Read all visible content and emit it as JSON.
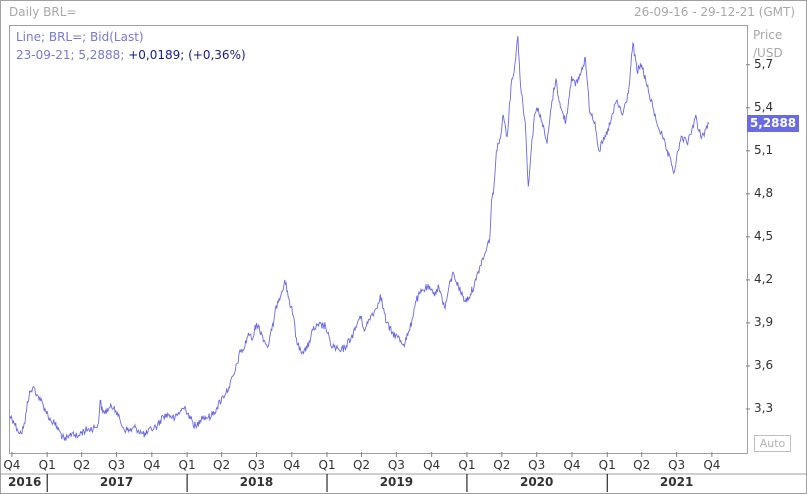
{
  "header": {
    "title": "Daily BRL=",
    "date_range": "26-09-16 - 29-12-21 (GMT)"
  },
  "legend": {
    "series_line": "Line; BRL=; Bid(Last)",
    "last_point": "23-09-21; 5,2888;",
    "change_abs": "+0,0189;",
    "change_pct": "(+0,36%)"
  },
  "y_axis": {
    "title_line1": "Price",
    "title_line2": "/USD",
    "last_value": "5,2888",
    "auto_label": "Auto"
  },
  "colors": {
    "line": "#6a6ae6",
    "badge": "#6a6ae6"
  },
  "chart_data": {
    "type": "line",
    "title": "Daily BRL=",
    "ylabel": "Price /USD",
    "ylim": [
      3.0,
      5.97
    ],
    "xlim": [
      "2016-09-26",
      "2021-12-29"
    ],
    "y_ticks": [
      3.3,
      3.6,
      3.9,
      4.2,
      4.5,
      4.8,
      5.1,
      5.4,
      5.7
    ],
    "y_tick_labels": [
      "3,3",
      "3,6",
      "3,9",
      "4,2",
      "4,5",
      "4,8",
      "5,1",
      "5,4",
      "5,7"
    ],
    "x_quarter_ticks": [
      {
        "date": "2016-10-01",
        "label": "Q4"
      },
      {
        "date": "2017-01-01",
        "label": "Q1"
      },
      {
        "date": "2017-04-01",
        "label": "Q2"
      },
      {
        "date": "2017-07-01",
        "label": "Q3"
      },
      {
        "date": "2017-10-01",
        "label": "Q4"
      },
      {
        "date": "2018-01-01",
        "label": "Q1"
      },
      {
        "date": "2018-04-01",
        "label": "Q2"
      },
      {
        "date": "2018-07-01",
        "label": "Q3"
      },
      {
        "date": "2018-10-01",
        "label": "Q4"
      },
      {
        "date": "2019-01-01",
        "label": "Q1"
      },
      {
        "date": "2019-04-01",
        "label": "Q2"
      },
      {
        "date": "2019-07-01",
        "label": "Q3"
      },
      {
        "date": "2019-10-01",
        "label": "Q4"
      },
      {
        "date": "2020-01-01",
        "label": "Q1"
      },
      {
        "date": "2020-04-01",
        "label": "Q2"
      },
      {
        "date": "2020-07-01",
        "label": "Q3"
      },
      {
        "date": "2020-10-01",
        "label": "Q4"
      },
      {
        "date": "2021-01-01",
        "label": "Q1"
      },
      {
        "date": "2021-04-01",
        "label": "Q2"
      },
      {
        "date": "2021-07-01",
        "label": "Q3"
      },
      {
        "date": "2021-10-01",
        "label": "Q4"
      }
    ],
    "x_year_labels": [
      {
        "date": "2016-09-26",
        "label": "2016"
      },
      {
        "date": "2017-07-01",
        "label": "2017"
      },
      {
        "date": "2018-07-01",
        "label": "2018"
      },
      {
        "date": "2019-07-01",
        "label": "2019"
      },
      {
        "date": "2020-07-01",
        "label": "2020"
      },
      {
        "date": "2021-07-01",
        "label": "2021"
      }
    ],
    "year_separators": [
      "2017-01-01",
      "2018-01-01",
      "2019-01-01",
      "2020-01-01",
      "2021-01-01"
    ],
    "series": [
      {
        "values": [
          [
            "2016-09-26",
            3.25
          ],
          [
            "2016-10-05",
            3.22
          ],
          [
            "2016-10-15",
            3.16
          ],
          [
            "2016-10-25",
            3.13
          ],
          [
            "2016-11-04",
            3.2
          ],
          [
            "2016-11-10",
            3.35
          ],
          [
            "2016-11-18",
            3.42
          ],
          [
            "2016-11-28",
            3.45
          ],
          [
            "2016-12-05",
            3.4
          ],
          [
            "2016-12-15",
            3.36
          ],
          [
            "2016-12-28",
            3.29
          ],
          [
            "2017-01-10",
            3.22
          ],
          [
            "2017-01-20",
            3.2
          ],
          [
            "2017-02-01",
            3.15
          ],
          [
            "2017-02-15",
            3.08
          ],
          [
            "2017-02-25",
            3.1
          ],
          [
            "2017-03-10",
            3.14
          ],
          [
            "2017-03-20",
            3.1
          ],
          [
            "2017-04-01",
            3.14
          ],
          [
            "2017-04-20",
            3.16
          ],
          [
            "2017-05-05",
            3.17
          ],
          [
            "2017-05-15",
            3.2
          ],
          [
            "2017-05-19",
            3.36
          ],
          [
            "2017-05-26",
            3.27
          ],
          [
            "2017-06-10",
            3.3
          ],
          [
            "2017-06-25",
            3.32
          ],
          [
            "2017-07-05",
            3.25
          ],
          [
            "2017-07-20",
            3.16
          ],
          [
            "2017-08-05",
            3.15
          ],
          [
            "2017-08-20",
            3.17
          ],
          [
            "2017-09-05",
            3.13
          ],
          [
            "2017-09-15",
            3.12
          ],
          [
            "2017-09-30",
            3.16
          ],
          [
            "2017-10-15",
            3.18
          ],
          [
            "2017-10-30",
            3.25
          ],
          [
            "2017-11-15",
            3.26
          ],
          [
            "2017-11-30",
            3.23
          ],
          [
            "2017-12-15",
            3.29
          ],
          [
            "2017-12-28",
            3.31
          ],
          [
            "2018-01-10",
            3.23
          ],
          [
            "2018-01-25",
            3.17
          ],
          [
            "2018-02-08",
            3.25
          ],
          [
            "2018-02-20",
            3.24
          ],
          [
            "2018-03-05",
            3.25
          ],
          [
            "2018-03-20",
            3.31
          ],
          [
            "2018-04-05",
            3.39
          ],
          [
            "2018-04-20",
            3.45
          ],
          [
            "2018-05-05",
            3.55
          ],
          [
            "2018-05-20",
            3.7
          ],
          [
            "2018-05-30",
            3.72
          ],
          [
            "2018-06-10",
            3.83
          ],
          [
            "2018-06-20",
            3.78
          ],
          [
            "2018-07-01",
            3.9
          ],
          [
            "2018-07-15",
            3.82
          ],
          [
            "2018-07-30",
            3.73
          ],
          [
            "2018-08-10",
            3.85
          ],
          [
            "2018-08-25",
            4.05
          ],
          [
            "2018-09-05",
            4.12
          ],
          [
            "2018-09-13",
            4.2
          ],
          [
            "2018-09-25",
            4.05
          ],
          [
            "2018-10-05",
            3.95
          ],
          [
            "2018-10-15",
            3.75
          ],
          [
            "2018-10-30",
            3.7
          ],
          [
            "2018-11-10",
            3.72
          ],
          [
            "2018-11-25",
            3.85
          ],
          [
            "2018-12-10",
            3.88
          ],
          [
            "2018-12-28",
            3.88
          ],
          [
            "2019-01-10",
            3.75
          ],
          [
            "2019-01-25",
            3.72
          ],
          [
            "2019-02-05",
            3.7
          ],
          [
            "2019-02-20",
            3.74
          ],
          [
            "2019-03-05",
            3.8
          ],
          [
            "2019-03-15",
            3.85
          ],
          [
            "2019-03-28",
            3.95
          ],
          [
            "2019-04-10",
            3.85
          ],
          [
            "2019-04-25",
            3.95
          ],
          [
            "2019-05-10",
            4.0
          ],
          [
            "2019-05-20",
            4.1
          ],
          [
            "2019-06-05",
            3.9
          ],
          [
            "2019-06-20",
            3.83
          ],
          [
            "2019-07-05",
            3.8
          ],
          [
            "2019-07-20",
            3.75
          ],
          [
            "2019-08-05",
            3.85
          ],
          [
            "2019-08-20",
            4.05
          ],
          [
            "2019-09-05",
            4.12
          ],
          [
            "2019-09-20",
            4.15
          ],
          [
            "2019-10-05",
            4.1
          ],
          [
            "2019-10-20",
            4.15
          ],
          [
            "2019-11-05",
            4.0
          ],
          [
            "2019-11-15",
            4.15
          ],
          [
            "2019-11-27",
            4.25
          ],
          [
            "2019-12-10",
            4.15
          ],
          [
            "2019-12-28",
            4.05
          ],
          [
            "2020-01-10",
            4.1
          ],
          [
            "2020-01-25",
            4.2
          ],
          [
            "2020-02-05",
            4.3
          ],
          [
            "2020-02-20",
            4.4
          ],
          [
            "2020-03-01",
            4.5
          ],
          [
            "2020-03-05",
            4.75
          ],
          [
            "2020-03-10",
            4.8
          ],
          [
            "2020-03-18",
            5.1
          ],
          [
            "2020-03-25",
            5.15
          ],
          [
            "2020-04-05",
            5.35
          ],
          [
            "2020-04-15",
            5.2
          ],
          [
            "2020-04-25",
            5.55
          ],
          [
            "2020-05-05",
            5.7
          ],
          [
            "2020-05-13",
            5.9
          ],
          [
            "2020-05-20",
            5.55
          ],
          [
            "2020-06-01",
            5.3
          ],
          [
            "2020-06-09",
            4.85
          ],
          [
            "2020-06-15",
            5.05
          ],
          [
            "2020-06-25",
            5.35
          ],
          [
            "2020-07-05",
            5.4
          ],
          [
            "2020-07-15",
            5.3
          ],
          [
            "2020-07-28",
            5.15
          ],
          [
            "2020-08-10",
            5.45
          ],
          [
            "2020-08-20",
            5.6
          ],
          [
            "2020-09-01",
            5.4
          ],
          [
            "2020-09-15",
            5.3
          ],
          [
            "2020-09-30",
            5.62
          ],
          [
            "2020-10-10",
            5.55
          ],
          [
            "2020-10-25",
            5.65
          ],
          [
            "2020-11-05",
            5.75
          ],
          [
            "2020-11-15",
            5.4
          ],
          [
            "2020-11-30",
            5.3
          ],
          [
            "2020-12-10",
            5.1
          ],
          [
            "2020-12-28",
            5.2
          ],
          [
            "2021-01-10",
            5.3
          ],
          [
            "2021-01-25",
            5.45
          ],
          [
            "2021-02-10",
            5.35
          ],
          [
            "2021-02-25",
            5.5
          ],
          [
            "2021-03-09",
            5.85
          ],
          [
            "2021-03-20",
            5.65
          ],
          [
            "2021-04-01",
            5.7
          ],
          [
            "2021-04-15",
            5.55
          ],
          [
            "2021-04-30",
            5.4
          ],
          [
            "2021-05-10",
            5.3
          ],
          [
            "2021-05-25",
            5.2
          ],
          [
            "2021-06-05",
            5.1
          ],
          [
            "2021-06-25",
            4.95
          ],
          [
            "2021-07-05",
            5.1
          ],
          [
            "2021-07-15",
            5.2
          ],
          [
            "2021-07-28",
            5.15
          ],
          [
            "2021-08-10",
            5.25
          ],
          [
            "2021-08-20",
            5.35
          ],
          [
            "2021-08-25",
            5.25
          ],
          [
            "2021-09-05",
            5.2
          ],
          [
            "2021-09-15",
            5.25
          ],
          [
            "2021-09-23",
            5.2888
          ]
        ]
      }
    ]
  }
}
